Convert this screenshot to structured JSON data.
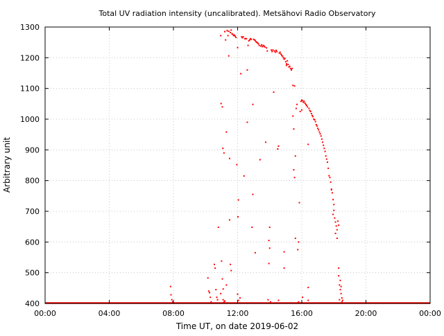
{
  "chart_data": {
    "type": "scatter",
    "title": "Total UV radiation intensity (uncalibrated). Metsähovi Radio Observatory",
    "xlabel": "Time UT, on date 2019-06-02",
    "ylabel": "Arbitrary unit",
    "x_unit": "hours UT",
    "xlim": [
      0,
      24
    ],
    "ylim": [
      400,
      1300
    ],
    "x_ticks": [
      {
        "value": 0,
        "label": "00:00"
      },
      {
        "value": 4,
        "label": "04:00"
      },
      {
        "value": 8,
        "label": "08:00"
      },
      {
        "value": 12,
        "label": "12:00"
      },
      {
        "value": 16,
        "label": "16:00"
      },
      {
        "value": 20,
        "label": "20:00"
      },
      {
        "value": 24,
        "label": "00:00"
      }
    ],
    "y_ticks": [
      400,
      500,
      600,
      700,
      800,
      900,
      1000,
      1100,
      1200,
      1300
    ],
    "grid": true,
    "marker_color": "#ff0000",
    "baseline": {
      "x_start": 0,
      "x_end": 24,
      "y": 400
    },
    "series": [
      {
        "points": [
          [
            7.82,
            455
          ],
          [
            7.85,
            428
          ],
          [
            7.9,
            412
          ],
          [
            7.95,
            405
          ],
          [
            10.15,
            483
          ],
          [
            10.2,
            440
          ],
          [
            10.25,
            435
          ],
          [
            10.3,
            420
          ],
          [
            10.35,
            405
          ],
          [
            10.55,
            527
          ],
          [
            10.6,
            515
          ],
          [
            10.65,
            445
          ],
          [
            10.7,
            420
          ],
          [
            10.75,
            412
          ],
          [
            10.8,
            648
          ],
          [
            10.95,
            432
          ],
          [
            11.0,
            538
          ],
          [
            11.05,
            480
          ],
          [
            11.1,
            447
          ],
          [
            11.1,
            412
          ],
          [
            11.15,
            405
          ],
          [
            11.2,
            408
          ],
          [
            11.3,
            460
          ],
          [
            10.95,
            1272
          ],
          [
            10.97,
            1051
          ],
          [
            11.05,
            1040
          ],
          [
            11.08,
            905
          ],
          [
            11.15,
            890
          ],
          [
            11.2,
            1285
          ],
          [
            11.25,
            1258
          ],
          [
            11.3,
            958
          ],
          [
            11.35,
            1288
          ],
          [
            11.4,
            1272
          ],
          [
            11.45,
            1206
          ],
          [
            11.5,
            872
          ],
          [
            11.5,
            672
          ],
          [
            11.55,
            527
          ],
          [
            11.6,
            507
          ],
          [
            11.35,
            1288
          ],
          [
            11.45,
            1286
          ],
          [
            11.55,
            1282
          ],
          [
            11.6,
            1290
          ],
          [
            11.65,
            1278
          ],
          [
            11.7,
            1276
          ],
          [
            11.75,
            1272
          ],
          [
            11.8,
            1274
          ],
          [
            11.85,
            1270
          ],
          [
            11.9,
            1266
          ],
          [
            11.95,
            852
          ],
          [
            12.0,
            1233
          ],
          [
            12.02,
            682
          ],
          [
            12.05,
            737
          ],
          [
            12.0,
            430
          ],
          [
            12.05,
            410
          ],
          [
            12.15,
            418
          ],
          [
            12.2,
            1148
          ],
          [
            12.25,
            1268
          ],
          [
            12.3,
            1265
          ],
          [
            12.35,
            1268
          ],
          [
            12.4,
            815
          ],
          [
            12.45,
            1262
          ],
          [
            12.5,
            1262
          ],
          [
            12.55,
            1262
          ],
          [
            12.6,
            1160
          ],
          [
            12.6,
            990
          ],
          [
            12.65,
            1240
          ],
          [
            12.7,
            1255
          ],
          [
            12.75,
            1258
          ],
          [
            12.8,
            1262
          ],
          [
            12.85,
            1260
          ],
          [
            12.9,
            648
          ],
          [
            12.95,
            1048
          ],
          [
            12.95,
            755
          ],
          [
            13.0,
            1260
          ],
          [
            13.05,
            1258
          ],
          [
            13.1,
            1256
          ],
          [
            13.1,
            565
          ],
          [
            13.15,
            1252
          ],
          [
            13.2,
            1250
          ],
          [
            13.25,
            1248
          ],
          [
            13.3,
            1245
          ],
          [
            13.35,
            1240
          ],
          [
            13.4,
            868
          ],
          [
            13.45,
            1238
          ],
          [
            13.5,
            1242
          ],
          [
            13.55,
            1236
          ],
          [
            13.6,
            1240
          ],
          [
            13.65,
            1238
          ],
          [
            13.7,
            1235
          ],
          [
            13.75,
            925
          ],
          [
            13.8,
            1232
          ],
          [
            13.85,
            1222
          ],
          [
            13.9,
            412
          ],
          [
            13.95,
            530
          ],
          [
            13.95,
            605
          ],
          [
            14.0,
            648
          ],
          [
            14.0,
            580
          ],
          [
            14.1,
            1225
          ],
          [
            14.15,
            1220
          ],
          [
            14.2,
            1225
          ],
          [
            14.25,
            1088
          ],
          [
            14.3,
            1222
          ],
          [
            14.35,
            1218
          ],
          [
            14.4,
            1224
          ],
          [
            14.45,
            1220
          ],
          [
            14.5,
            903
          ],
          [
            14.55,
            912
          ],
          [
            14.6,
            1215
          ],
          [
            14.65,
            1218
          ],
          [
            14.7,
            1212
          ],
          [
            14.75,
            1208
          ],
          [
            14.8,
            1205
          ],
          [
            14.85,
            1200
          ],
          [
            14.9,
            1195
          ],
          [
            14.9,
            568
          ],
          [
            14.9,
            515
          ],
          [
            14.95,
            1198
          ],
          [
            15.0,
            1187
          ],
          [
            15.05,
            1180
          ],
          [
            15.05,
            1175
          ],
          [
            15.1,
            1190
          ],
          [
            15.15,
            1178
          ],
          [
            15.2,
            1170
          ],
          [
            15.25,
            1172
          ],
          [
            15.3,
            1165
          ],
          [
            15.35,
            1160
          ],
          [
            15.4,
            1165
          ],
          [
            15.45,
            1110
          ],
          [
            15.45,
            1010
          ],
          [
            15.5,
            968
          ],
          [
            15.55,
            1108
          ],
          [
            15.5,
            835
          ],
          [
            15.55,
            810
          ],
          [
            15.6,
            880
          ],
          [
            15.6,
            612
          ],
          [
            15.65,
            1035
          ],
          [
            15.7,
            1048
          ],
          [
            15.75,
            575
          ],
          [
            15.8,
            600
          ],
          [
            15.85,
            728
          ],
          [
            15.9,
            1025
          ],
          [
            15.95,
            1058
          ],
          [
            16.0,
            1062
          ],
          [
            16.0,
            1030
          ],
          [
            16.05,
            1060
          ],
          [
            16.1,
            1055
          ],
          [
            16.15,
            1058
          ],
          [
            16.2,
            1052
          ],
          [
            16.25,
            1048
          ],
          [
            16.3,
            1045
          ],
          [
            16.35,
            1040
          ],
          [
            16.4,
            918
          ],
          [
            16.45,
            1035
          ],
          [
            16.5,
            1028
          ],
          [
            16.55,
            1025
          ],
          [
            16.6,
            1018
          ],
          [
            16.65,
            1012
          ],
          [
            16.7,
            1008
          ],
          [
            16.75,
            1000
          ],
          [
            16.8,
            998
          ],
          [
            16.85,
            992
          ],
          [
            16.9,
            982
          ],
          [
            16.95,
            978
          ],
          [
            17.0,
            970
          ],
          [
            17.05,
            965
          ],
          [
            17.1,
            958
          ],
          [
            17.15,
            952
          ],
          [
            17.2,
            945
          ],
          [
            17.25,
            935
          ],
          [
            17.3,
            925
          ],
          [
            17.35,
            915
          ],
          [
            17.4,
            905
          ],
          [
            17.45,
            895
          ],
          [
            17.5,
            880
          ],
          [
            17.55,
            870
          ],
          [
            17.6,
            860
          ],
          [
            17.65,
            840
          ],
          [
            17.7,
            816
          ],
          [
            17.75,
            810
          ],
          [
            17.8,
            795
          ],
          [
            17.85,
            772
          ],
          [
            17.9,
            760
          ],
          [
            17.95,
            738
          ],
          [
            18.0,
            722
          ],
          [
            18.0,
            703
          ],
          [
            18.05,
            678
          ],
          [
            18.1,
            665
          ],
          [
            18.15,
            652
          ],
          [
            18.2,
            640
          ],
          [
            18.2,
            612
          ],
          [
            18.25,
            668
          ],
          [
            18.3,
            655
          ],
          [
            18.3,
            490
          ],
          [
            18.35,
            460
          ],
          [
            18.4,
            445
          ],
          [
            18.45,
            432
          ],
          [
            18.5,
            418
          ],
          [
            18.55,
            410
          ],
          [
            18.3,
            515
          ],
          [
            18.4,
            475
          ],
          [
            18.45,
            455
          ],
          [
            16.4,
            410
          ],
          [
            16.4,
            452
          ],
          [
            17.85,
            770
          ],
          [
            17.95,
            690
          ],
          [
            18.1,
            628
          ],
          [
            18.35,
            412
          ],
          [
            18.5,
            405
          ],
          [
            15.8,
            405
          ],
          [
            16.05,
            420
          ],
          [
            14.05,
            405
          ],
          [
            14.55,
            410
          ]
        ]
      }
    ]
  }
}
